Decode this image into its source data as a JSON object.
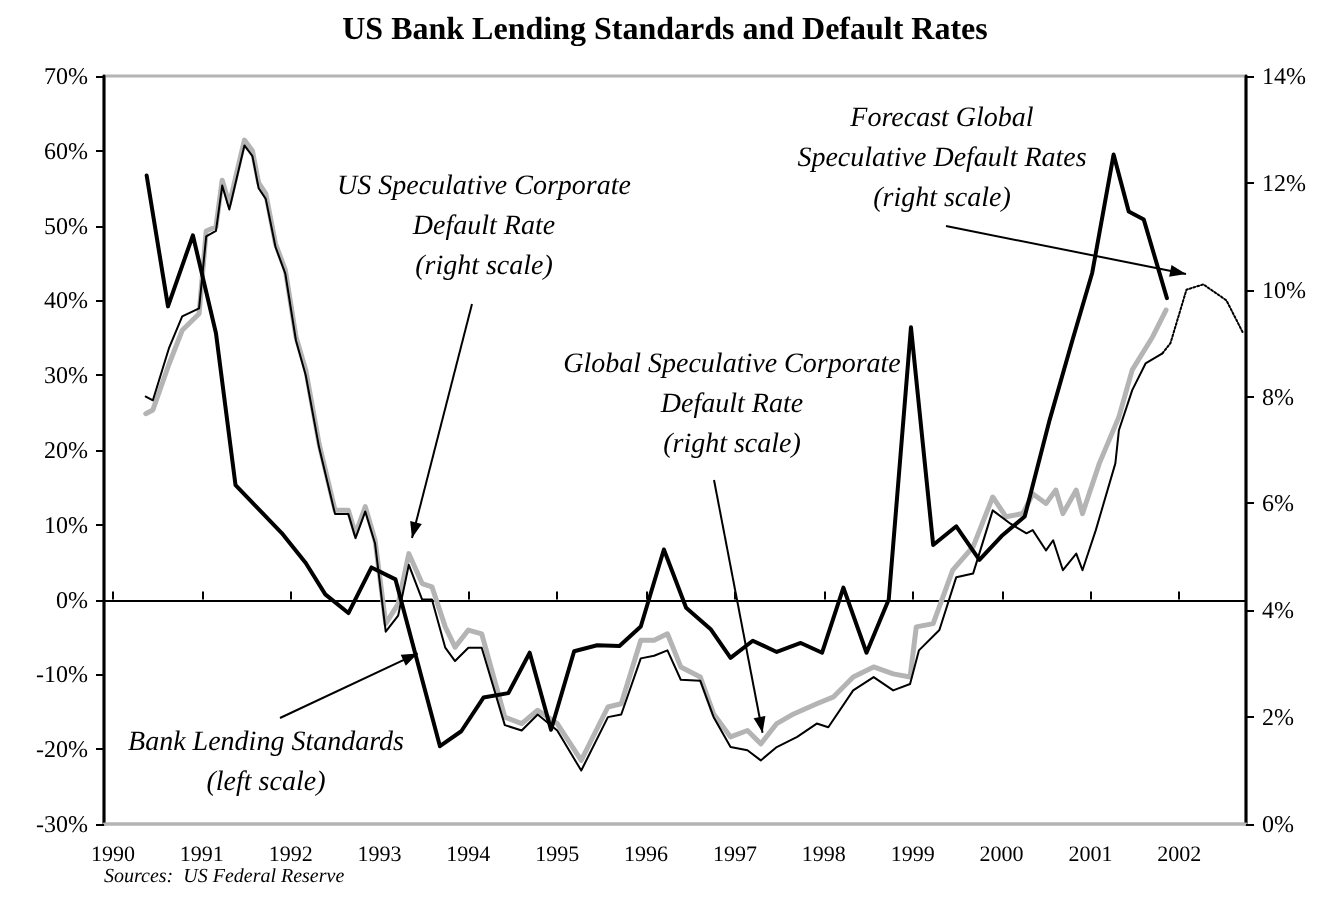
{
  "chart_data": {
    "type": "line",
    "title": "US Bank Lending Standards and Default Rates",
    "xlim": [
      1989.9,
      2002.75
    ],
    "xticks": [
      1990,
      1991,
      1992,
      1993,
      1994,
      1995,
      1996,
      1997,
      1998,
      1999,
      2000,
      2001,
      2002
    ],
    "ylim": [
      -30,
      70
    ],
    "yticks": [
      {
        "value": -30,
        "label": "-30%"
      },
      {
        "value": -20,
        "label": "-20%"
      },
      {
        "value": -10,
        "label": "-10%"
      },
      {
        "value": 0,
        "label": "0%"
      },
      {
        "value": 10,
        "label": "10%"
      },
      {
        "value": 20,
        "label": "20%"
      },
      {
        "value": 30,
        "label": "30%"
      },
      {
        "value": 40,
        "label": "40%"
      },
      {
        "value": 50,
        "label": "50%"
      },
      {
        "value": 60,
        "label": "60%"
      },
      {
        "value": 70,
        "label": "70%"
      }
    ],
    "y2lim": [
      0,
      14
    ],
    "y2ticks": [
      {
        "value": 0,
        "label": "0%"
      },
      {
        "value": 2,
        "label": "2%"
      },
      {
        "value": 4,
        "label": "4%"
      },
      {
        "value": 6,
        "label": "6%"
      },
      {
        "value": 8,
        "label": "8%"
      },
      {
        "value": 10,
        "label": "10%"
      },
      {
        "value": 12,
        "label": "12%"
      },
      {
        "value": 14,
        "label": "14%"
      }
    ],
    "marker": "none",
    "line_style": "solid",
    "series": [
      {
        "color": "#b4b4b4",
        "axis": "y2",
        "x": [
          1990.37,
          1990.45,
          1990.63,
          1990.78,
          1990.97,
          1991.05,
          1991.16,
          1991.23,
          1991.31,
          1991.48,
          1991.57,
          1991.64,
          1991.72,
          1991.83,
          1991.94,
          1992.06,
          1992.17,
          1992.32,
          1992.5,
          1992.65,
          1992.73,
          1992.84,
          1992.95,
          1993.07,
          1993.21,
          1993.33,
          1993.48,
          1993.59,
          1993.74,
          1993.85,
          1994.0,
          1994.15,
          1994.41,
          1994.6,
          1994.78,
          1995.0,
          1995.27,
          1995.57,
          1995.72,
          1995.94,
          1996.09,
          1996.24,
          1996.39,
          1996.61,
          1996.76,
          1996.95,
          1997.14,
          1997.29,
          1997.47,
          1997.66,
          1997.92,
          1998.11,
          1998.33,
          1998.56,
          1998.78,
          1998.97,
          1999.04,
          1999.23,
          1999.45,
          1999.68,
          1999.9,
          2000.05,
          2000.24,
          2000.35,
          2000.5,
          2000.61,
          2000.69,
          2000.84,
          2000.91,
          2001.1,
          2001.32,
          2001.47,
          2001.7,
          2001.85
        ],
        "values": [
          7.68,
          7.75,
          8.6,
          9.24,
          9.55,
          11.1,
          11.18,
          12.05,
          11.6,
          12.8,
          12.6,
          12.0,
          11.8,
          10.86,
          10.37,
          9.12,
          8.5,
          7.12,
          5.87,
          5.87,
          5.43,
          5.94,
          5.31,
          3.75,
          4.12,
          5.06,
          4.5,
          4.44,
          3.69,
          3.31,
          3.63,
          3.56,
          2.0,
          1.88,
          2.13,
          1.88,
          1.19,
          2.19,
          2.25,
          3.44,
          3.44,
          3.56,
          2.94,
          2.75,
          2.06,
          1.63,
          1.75,
          1.5,
          1.88,
          2.06,
          2.25,
          2.38,
          2.75,
          2.94,
          2.81,
          2.75,
          3.69,
          3.75,
          4.75,
          5.19,
          6.12,
          5.75,
          5.81,
          6.18,
          6.0,
          6.25,
          5.81,
          6.25,
          5.81,
          6.75,
          7.62,
          8.5,
          9.12,
          9.62
        ]
      },
      {
        "color": "#000000",
        "axis": "y2",
        "x": [
          1990.37,
          1990.45,
          1990.63,
          1990.78,
          1990.97,
          1991.05,
          1991.16,
          1991.23,
          1991.31,
          1991.48,
          1991.57,
          1991.64,
          1991.72,
          1991.83,
          1991.94,
          1992.06,
          1992.17,
          1992.32,
          1992.5,
          1992.65,
          1992.73,
          1992.84,
          1992.95,
          1993.07,
          1993.21,
          1993.33,
          1993.48,
          1993.59,
          1993.74,
          1993.85,
          1994.0,
          1994.15,
          1994.41,
          1994.6,
          1994.78,
          1995.0,
          1995.27,
          1995.57,
          1995.72,
          1995.94,
          1996.09,
          1996.24,
          1996.39,
          1996.61,
          1996.76,
          1996.95,
          1997.14,
          1997.29,
          1997.47,
          1997.7,
          1997.92,
          1998.05,
          1998.33,
          1998.56,
          1998.78,
          1998.97,
          1999.07,
          1999.3,
          1999.49,
          1999.68,
          1999.9,
          2000.1,
          2000.28,
          2000.35,
          2000.5,
          2000.58,
          2000.69,
          2000.84,
          2000.91,
          2001.06,
          2001.28,
          2001.32,
          2001.47,
          2001.62,
          2001.81
        ],
        "values": [
          8.0,
          7.93,
          8.9,
          9.5,
          9.65,
          11.0,
          11.1,
          11.95,
          11.5,
          12.7,
          12.5,
          11.9,
          11.7,
          10.8,
          10.3,
          9.05,
          8.4,
          7.05,
          5.8,
          5.8,
          5.35,
          5.85,
          5.25,
          3.6,
          3.9,
          4.85,
          4.2,
          4.2,
          3.3,
          3.05,
          3.3,
          3.3,
          1.85,
          1.75,
          2.05,
          1.75,
          1.0,
          2.0,
          2.05,
          3.1,
          3.15,
          3.25,
          2.7,
          2.68,
          2.0,
          1.44,
          1.38,
          1.19,
          1.44,
          1.63,
          1.88,
          1.81,
          2.5,
          2.75,
          2.5,
          2.62,
          3.25,
          3.63,
          4.62,
          4.69,
          5.87,
          5.62,
          5.44,
          5.5,
          5.12,
          5.31,
          4.75,
          5.06,
          4.75,
          5.5,
          6.75,
          7.37,
          8.12,
          8.62,
          8.81
        ]
      },
      {
        "color": "#000000",
        "axis": "y2",
        "line_style": "dotted",
        "x": [
          2001.81,
          2001.9,
          2002.08,
          2002.27,
          2002.53,
          2002.72
        ],
        "values": [
          8.81,
          9.0,
          10.0,
          10.1,
          9.8,
          9.18
        ]
      },
      {
        "color": "#000000",
        "x": [
          1990.38,
          1990.62,
          1990.9,
          1991.16,
          1991.38,
          1991.9,
          1992.17,
          1992.39,
          1992.65,
          1992.91,
          1993.18,
          1993.68,
          1993.92,
          1994.17,
          1994.45,
          1994.69,
          1994.93,
          1995.19,
          1995.45,
          1995.7,
          1995.94,
          1996.2,
          1996.45,
          1996.73,
          1996.95,
          1997.2,
          1997.47,
          1997.74,
          1997.98,
          1998.22,
          1998.48,
          1998.73,
          1998.98,
          1999.23,
          1999.49,
          1999.75,
          2000.0,
          2000.26,
          2000.54,
          2000.8,
          2001.02,
          2001.26,
          2001.43,
          2001.6,
          2001.86
        ],
        "values": [
          56.7,
          39.2,
          48.7,
          35.6,
          15.3,
          8.9,
          4.9,
          0.7,
          -1.8,
          4.3,
          2.7,
          -19.6,
          -17.6,
          -13.1,
          -12.5,
          -7.1,
          -17.4,
          -6.9,
          -6.1,
          -6.2,
          -3.6,
          6.7,
          -1.1,
          -4.0,
          -7.8,
          -5.5,
          -7.0,
          -5.8,
          -7.1,
          1.6,
          -7.1,
          0,
          36.4,
          7.3,
          9.8,
          5.3,
          8.5,
          11.1,
          24,
          34.8,
          43.7,
          59.5,
          51.9,
          50.8,
          40.3
        ]
      }
    ],
    "annotations": [
      "US Speculative Corporate\nDefault Rate\n(right scale)",
      {
        "text": "Global Speculative Corporate\nDefault Rate\n(right scale)",
        "x": 1997.31,
        "y": -17.8
      },
      {
        "text": "Bank Lending Standards\n(left scale)",
        "x": 1993.43,
        "y": -7.2
      },
      "Forecast Global\nSpeculative Default Rates\n(right scale)",
      "Sources:  US Federal Reserve"
    ]
  }
}
